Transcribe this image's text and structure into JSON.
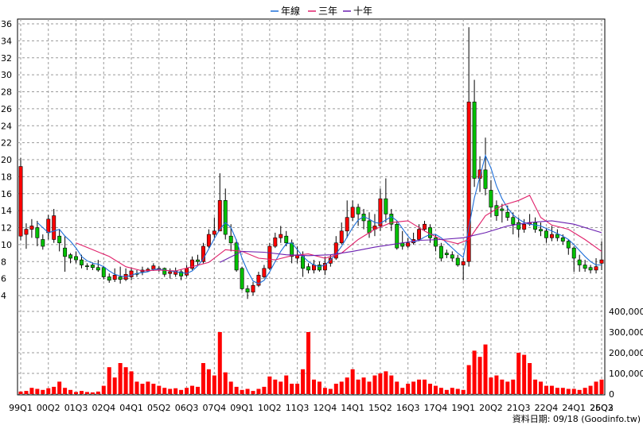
{
  "legend": {
    "items": [
      {
        "label": "年線",
        "color": "#1e6fd9"
      },
      {
        "label": "三年",
        "color": "#e0206a"
      },
      {
        "label": "十年",
        "color": "#6a1fb0"
      }
    ]
  },
  "credit": "資料日期: 09/18 (Goodinfo.tw)",
  "colors": {
    "up": "#ff0000",
    "down": "#00c000",
    "volume": "#ff0000",
    "grid": "#9a9a9a"
  },
  "chart_data": {
    "type": "candlestick",
    "price_axis": {
      "min": 4,
      "max": 36,
      "ticks": [
        4,
        6,
        8,
        10,
        12,
        14,
        16,
        18,
        20,
        22,
        24,
        26,
        28,
        30,
        32,
        34,
        36
      ],
      "side": "left"
    },
    "volume_axis": {
      "min": 0,
      "max": 400000,
      "ticks": [
        0,
        100000,
        200000,
        300000,
        400000
      ],
      "tick_labels": [
        "0",
        "100,000",
        "200,000",
        "300,000",
        "400,000"
      ],
      "side": "right"
    },
    "x_tick_labels": [
      "99Q1",
      "00Q2",
      "01Q3",
      "02Q4",
      "04Q1",
      "05Q2",
      "06Q3",
      "07Q4",
      "09Q1",
      "10Q2",
      "11Q3",
      "12Q4",
      "14Q1",
      "15Q2",
      "16Q3",
      "17Q4",
      "19Q1",
      "20Q2",
      "21Q3",
      "22Q4",
      "24Q1",
      "25Q2",
      "26Q3"
    ],
    "x_tick_every": 5,
    "bars": [
      [
        11,
        19.2,
        20.2,
        10.5,
        12000
      ],
      [
        11.2,
        11.8,
        12.5,
        9.5,
        15000
      ],
      [
        11.8,
        12.2,
        13,
        10.8,
        30000
      ],
      [
        12,
        10.8,
        12.8,
        9.8,
        25000
      ],
      [
        10.6,
        9.8,
        11.2,
        9.4,
        20000
      ],
      [
        11.4,
        13,
        13.5,
        10.6,
        28000
      ],
      [
        10.6,
        13.4,
        14.2,
        10.2,
        35000
      ],
      [
        11,
        10.2,
        11.8,
        9.2,
        60000
      ],
      [
        9.6,
        8.6,
        11,
        6.8,
        30000
      ],
      [
        8.8,
        8.4,
        9,
        7.8,
        20000
      ],
      [
        8.6,
        8.2,
        9.2,
        7.8,
        10000
      ],
      [
        8.2,
        7.6,
        8.8,
        7.2,
        15000
      ],
      [
        7.5,
        7.4,
        7.8,
        7,
        10000
      ],
      [
        7.6,
        7.3,
        7.9,
        7,
        8000
      ],
      [
        7.3,
        7.0,
        8.2,
        6.8,
        12000
      ],
      [
        7.3,
        6.2,
        7.5,
        5.9,
        40000
      ],
      [
        6.2,
        5.8,
        6.6,
        5.5,
        130000
      ],
      [
        5.9,
        6.4,
        7.2,
        5.6,
        80000
      ],
      [
        6.2,
        5.9,
        7.4,
        5.4,
        150000
      ],
      [
        5.9,
        6.5,
        7.2,
        5.7,
        130000
      ],
      [
        6.2,
        6.9,
        7.3,
        5.8,
        110000
      ],
      [
        6.6,
        6.5,
        7.0,
        6.2,
        60000
      ],
      [
        6.8,
        7.0,
        7.4,
        6.4,
        50000
      ],
      [
        6.9,
        7.1,
        7.3,
        6.8,
        60000
      ],
      [
        7.1,
        7.5,
        7.8,
        6.9,
        50000
      ],
      [
        7.0,
        7.2,
        7.5,
        6.8,
        40000
      ],
      [
        7.2,
        6.5,
        7.3,
        6.2,
        30000
      ],
      [
        6.6,
        6.8,
        7.2,
        6.0,
        25000
      ],
      [
        6.5,
        6.9,
        7.3,
        6.2,
        28000
      ],
      [
        6.8,
        6.3,
        7.1,
        5.8,
        20000
      ],
      [
        6.4,
        7.2,
        7.6,
        6.2,
        30000
      ],
      [
        7.2,
        8.2,
        8.6,
        7.0,
        40000
      ],
      [
        8.2,
        8.0,
        8.8,
        7.6,
        35000
      ],
      [
        8.0,
        9.8,
        10.2,
        7.8,
        150000
      ],
      [
        9.8,
        11.2,
        11.8,
        9.6,
        120000
      ],
      [
        11.2,
        11.6,
        13.2,
        10.8,
        90000
      ],
      [
        11.6,
        15.2,
        18.4,
        11.6,
        300000
      ],
      [
        15.2,
        11.2,
        16.6,
        10.6,
        105000
      ],
      [
        11.0,
        10.2,
        12.4,
        9.2,
        60000
      ],
      [
        10.2,
        7.0,
        10.6,
        6.8,
        35000
      ],
      [
        7.2,
        4.8,
        7.4,
        4.6,
        20000
      ],
      [
        4.8,
        4.4,
        5.2,
        3.6,
        25000
      ],
      [
        4.4,
        5.2,
        5.6,
        4.0,
        15000
      ],
      [
        5.2,
        6.4,
        6.8,
        5.0,
        25000
      ],
      [
        6.2,
        7.2,
        7.6,
        6.0,
        35000
      ],
      [
        7.2,
        9.8,
        10.2,
        7.0,
        85000
      ],
      [
        9.8,
        10.8,
        11.4,
        9.6,
        70000
      ],
      [
        10.8,
        11.2,
        12.2,
        10.2,
        60000
      ],
      [
        11.0,
        10.2,
        11.6,
        9.8,
        90000
      ],
      [
        10.2,
        8.6,
        10.6,
        7.8,
        50000
      ],
      [
        8.4,
        8.8,
        9.8,
        7.8,
        50000
      ],
      [
        8.6,
        7.2,
        9.2,
        6.2,
        120000
      ],
      [
        7.4,
        7.0,
        7.8,
        6.6,
        300000
      ],
      [
        7.0,
        7.6,
        8.2,
        6.6,
        70000
      ],
      [
        7.6,
        7.0,
        8.0,
        6.8,
        60000
      ],
      [
        7.0,
        7.8,
        8.6,
        6.4,
        30000
      ],
      [
        7.8,
        8.4,
        8.8,
        7.4,
        25000
      ],
      [
        8.4,
        10.2,
        11.0,
        8.2,
        50000
      ],
      [
        10.2,
        11.6,
        12.6,
        10.0,
        60000
      ],
      [
        11.6,
        13.2,
        15.2,
        10.8,
        80000
      ],
      [
        13.2,
        14.4,
        15.2,
        12.8,
        120000
      ],
      [
        14.4,
        13.6,
        14.8,
        12.2,
        70000
      ],
      [
        13.6,
        12.8,
        14.2,
        11.8,
        80000
      ],
      [
        12.8,
        11.4,
        13.8,
        10.8,
        60000
      ],
      [
        11.8,
        12.2,
        13.6,
        11.0,
        90000
      ],
      [
        12.2,
        15.4,
        16.6,
        11.6,
        100000
      ],
      [
        15.4,
        13.6,
        17.8,
        12.6,
        110000
      ],
      [
        13.6,
        12.4,
        14.2,
        11.6,
        90000
      ],
      [
        12.4,
        9.6,
        12.8,
        9.4,
        60000
      ],
      [
        10.2,
        9.8,
        11.6,
        9.4,
        30000
      ],
      [
        9.8,
        10.2,
        10.8,
        9.6,
        50000
      ],
      [
        10.2,
        10.6,
        11.4,
        10.0,
        60000
      ],
      [
        10.6,
        11.8,
        12.4,
        10.4,
        70000
      ],
      [
        11.8,
        12.4,
        12.8,
        11.6,
        70000
      ],
      [
        12.0,
        10.8,
        12.4,
        10.2,
        50000
      ],
      [
        10.8,
        9.8,
        11.2,
        9.2,
        40000
      ],
      [
        9.8,
        8.4,
        10.2,
        8.0,
        30000
      ],
      [
        9.0,
        8.8,
        9.4,
        8.4,
        20000
      ],
      [
        8.8,
        8.4,
        9.2,
        8.0,
        30000
      ],
      [
        8.4,
        7.6,
        8.8,
        7.4,
        25000
      ],
      [
        7.6,
        8.0,
        8.4,
        5.8,
        20000
      ],
      [
        8.0,
        26.8,
        35.6,
        7.4,
        140000
      ],
      [
        26.8,
        17.8,
        29.4,
        16.8,
        210000
      ],
      [
        17.8,
        18.8,
        20.4,
        16.2,
        180000
      ],
      [
        18.8,
        16.6,
        22.6,
        15.8,
        240000
      ],
      [
        16.4,
        14.4,
        17.6,
        13.2,
        80000
      ],
      [
        14.6,
        13.4,
        15.2,
        12.8,
        90000
      ],
      [
        14.2,
        14.0,
        14.8,
        12.6,
        70000
      ],
      [
        13.8,
        13.2,
        14.6,
        12.8,
        60000
      ],
      [
        13.2,
        12.4,
        13.8,
        11.2,
        70000
      ],
      [
        12.6,
        11.8,
        13.2,
        10.8,
        200000
      ],
      [
        11.8,
        12.4,
        13.0,
        11.4,
        190000
      ],
      [
        12.4,
        12.6,
        13.6,
        12.2,
        150000
      ],
      [
        12.6,
        11.8,
        13.2,
        11.4,
        70000
      ],
      [
        11.8,
        11.6,
        12.6,
        11.0,
        60000
      ],
      [
        11.6,
        10.8,
        12.0,
        10.2,
        40000
      ],
      [
        10.8,
        11.2,
        12.2,
        10.4,
        40000
      ],
      [
        11.2,
        10.8,
        11.8,
        10.4,
        30000
      ],
      [
        10.8,
        10.4,
        11.2,
        10.0,
        30000
      ],
      [
        10.4,
        9.6,
        10.6,
        8.8,
        25000
      ],
      [
        9.6,
        8.4,
        9.8,
        6.8,
        25000
      ],
      [
        8.2,
        7.6,
        8.8,
        6.8,
        20000
      ],
      [
        7.6,
        7.2,
        8.2,
        6.8,
        30000
      ],
      [
        7.3,
        7.0,
        7.6,
        6.6,
        40000
      ],
      [
        7.0,
        7.4,
        8.4,
        6.6,
        60000
      ],
      [
        7.8,
        8.2,
        10.4,
        7.0,
        70000
      ]
    ],
    "moving_averages": [
      {
        "name": "年線",
        "color": "#1e6fd9",
        "points": [
          [
            3,
            12.6
          ],
          [
            4,
            12.0
          ],
          [
            5,
            11.4
          ],
          [
            6,
            11.6
          ],
          [
            7,
            11.8
          ],
          [
            8,
            11.0
          ],
          [
            9,
            10.4
          ],
          [
            10,
            9.6
          ],
          [
            11,
            8.6
          ],
          [
            12,
            8.1
          ],
          [
            13,
            7.8
          ],
          [
            14,
            7.7
          ],
          [
            15,
            7.4
          ],
          [
            16,
            6.9
          ],
          [
            17,
            6.5
          ],
          [
            18,
            6.3
          ],
          [
            19,
            6.2
          ],
          [
            20,
            6.4
          ],
          [
            21,
            6.6
          ],
          [
            22,
            6.7
          ],
          [
            23,
            6.8
          ],
          [
            24,
            7.1
          ],
          [
            25,
            7.1
          ],
          [
            26,
            7.0
          ],
          [
            27,
            6.9
          ],
          [
            28,
            6.8
          ],
          [
            29,
            6.7
          ],
          [
            30,
            6.6
          ],
          [
            31,
            6.9
          ],
          [
            32,
            7.5
          ],
          [
            33,
            8.3
          ],
          [
            34,
            9.5
          ],
          [
            35,
            10.7
          ],
          [
            36,
            11.8
          ],
          [
            37,
            12.6
          ],
          [
            38,
            12.0
          ],
          [
            39,
            10.5
          ],
          [
            40,
            8.4
          ],
          [
            41,
            6.9
          ],
          [
            42,
            5.7
          ],
          [
            43,
            5.4
          ],
          [
            44,
            5.8
          ],
          [
            45,
            6.8
          ],
          [
            46,
            8.0
          ],
          [
            47,
            9.2
          ],
          [
            48,
            10.1
          ],
          [
            49,
            10.2
          ],
          [
            50,
            9.4
          ],
          [
            51,
            8.6
          ],
          [
            52,
            8.0
          ],
          [
            53,
            7.6
          ],
          [
            54,
            7.4
          ],
          [
            55,
            7.6
          ],
          [
            56,
            8.2
          ],
          [
            57,
            8.9
          ],
          [
            58,
            9.8
          ],
          [
            59,
            10.9
          ],
          [
            60,
            12.0
          ],
          [
            61,
            12.9
          ],
          [
            62,
            13.3
          ],
          [
            63,
            13.0
          ],
          [
            64,
            12.6
          ],
          [
            65,
            12.5
          ],
          [
            66,
            12.9
          ],
          [
            67,
            13.3
          ],
          [
            68,
            12.8
          ],
          [
            69,
            11.9
          ],
          [
            70,
            11.0
          ],
          [
            71,
            10.3
          ],
          [
            72,
            10.5
          ],
          [
            73,
            10.9
          ],
          [
            74,
            11.2
          ],
          [
            75,
            11.2
          ],
          [
            76,
            10.8
          ],
          [
            77,
            10.2
          ],
          [
            78,
            9.6
          ],
          [
            79,
            9.0
          ],
          [
            80,
            8.5
          ],
          [
            81,
            12.0
          ],
          [
            82,
            15.5
          ],
          [
            83,
            18.0
          ],
          [
            84,
            20.5
          ],
          [
            85,
            19.0
          ],
          [
            86,
            16.9
          ],
          [
            87,
            15.4
          ],
          [
            88,
            14.3
          ],
          [
            89,
            13.5
          ],
          [
            90,
            13.0
          ],
          [
            91,
            12.6
          ],
          [
            92,
            12.4
          ],
          [
            93,
            12.3
          ],
          [
            94,
            12.2
          ],
          [
            95,
            11.9
          ],
          [
            96,
            11.6
          ],
          [
            97,
            11.3
          ],
          [
            98,
            11.0
          ],
          [
            99,
            10.6
          ],
          [
            100,
            10.0
          ],
          [
            101,
            9.3
          ],
          [
            102,
            8.6
          ],
          [
            103,
            8.0
          ],
          [
            104,
            7.6
          ],
          [
            105,
            7.6
          ]
        ]
      },
      {
        "name": "三年",
        "color": "#e0206a",
        "points": [
          [
            10,
            10.2
          ],
          [
            13,
            9.4
          ],
          [
            16,
            8.6
          ],
          [
            19,
            7.4
          ],
          [
            22,
            6.9
          ],
          [
            25,
            7.0
          ],
          [
            28,
            6.9
          ],
          [
            31,
            7.4
          ],
          [
            34,
            7.9
          ],
          [
            37,
            9.4
          ],
          [
            40,
            9.2
          ],
          [
            43,
            8.4
          ],
          [
            46,
            8.2
          ],
          [
            49,
            8.7
          ],
          [
            52,
            8.9
          ],
          [
            55,
            8.4
          ],
          [
            58,
            9.0
          ],
          [
            61,
            10.6
          ],
          [
            64,
            11.8
          ],
          [
            67,
            12.6
          ],
          [
            70,
            12.8
          ],
          [
            73,
            11.6
          ],
          [
            76,
            10.6
          ],
          [
            79,
            10.1
          ],
          [
            81,
            10.6
          ],
          [
            84,
            13.4
          ],
          [
            87,
            14.6
          ],
          [
            90,
            15.2
          ],
          [
            92,
            15.8
          ],
          [
            94,
            13.2
          ],
          [
            96,
            12.3
          ],
          [
            99,
            11.8
          ],
          [
            102,
            10.6
          ],
          [
            105,
            9.2
          ]
        ]
      },
      {
        "name": "十年",
        "color": "#6a1fb0",
        "points": [
          [
            36,
            7.9
          ],
          [
            40,
            9.2
          ],
          [
            44,
            9.1
          ],
          [
            48,
            8.8
          ],
          [
            52,
            8.7
          ],
          [
            56,
            8.8
          ],
          [
            60,
            9.2
          ],
          [
            64,
            9.7
          ],
          [
            68,
            10.1
          ],
          [
            72,
            10.5
          ],
          [
            76,
            10.6
          ],
          [
            80,
            10.8
          ],
          [
            84,
            11.4
          ],
          [
            88,
            12.2
          ],
          [
            92,
            12.6
          ],
          [
            96,
            12.8
          ],
          [
            100,
            12.4
          ],
          [
            105,
            11.4
          ]
        ]
      }
    ]
  }
}
